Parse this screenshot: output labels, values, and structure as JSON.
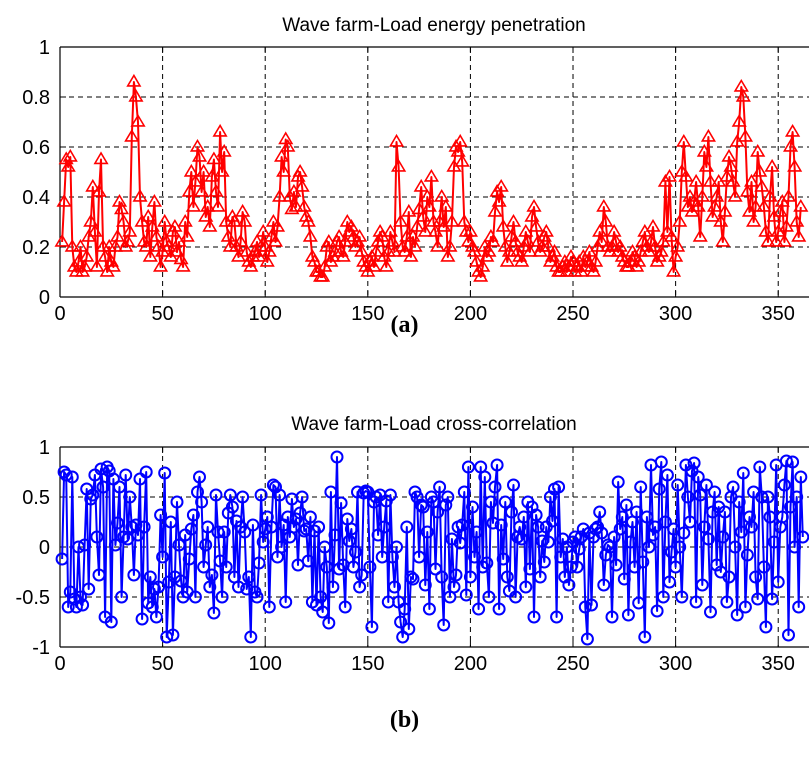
{
  "captions": {
    "a": "(a)",
    "b": "(b)"
  },
  "chart_data": [
    {
      "type": "line",
      "title": "Wave farm-Load energy penetration",
      "xlabel": "",
      "ylabel": "",
      "xlim": [
        0,
        365
      ],
      "ylim": [
        0,
        1
      ],
      "xticks": [
        0,
        50,
        100,
        150,
        200,
        250,
        300,
        350
      ],
      "yticks": [
        0,
        0.2,
        0.4,
        0.6,
        0.8,
        1
      ],
      "ytick_labels": [
        "0",
        "0.2",
        "0.4",
        "0.6",
        "0.8",
        "1"
      ],
      "grid": true,
      "legend": "none",
      "marker": "triangle",
      "color": "#ff0000",
      "series": [
        {
          "x_start": 1,
          "x_step": 1,
          "values": [
            0.22,
            0.38,
            0.55,
            0.52,
            0.56,
            0.2,
            0.12,
            0.1,
            0.14,
            0.2,
            0.1,
            0.12,
            0.16,
            0.24,
            0.3,
            0.44,
            0.26,
            0.12,
            0.42,
            0.55,
            0.2,
            0.16,
            0.1,
            0.2,
            0.14,
            0.12,
            0.2,
            0.24,
            0.38,
            0.35,
            0.3,
            0.2,
            0.22,
            0.26,
            0.64,
            0.86,
            0.8,
            0.7,
            0.4,
            0.3,
            0.22,
            0.2,
            0.32,
            0.16,
            0.28,
            0.38,
            0.24,
            0.2,
            0.12,
            0.18,
            0.3,
            0.22,
            0.2,
            0.16,
            0.26,
            0.28,
            0.18,
            0.22,
            0.15,
            0.12,
            0.3,
            0.24,
            0.42,
            0.5,
            0.36,
            0.46,
            0.6,
            0.56,
            0.42,
            0.5,
            0.32,
            0.36,
            0.28,
            0.48,
            0.55,
            0.42,
            0.36,
            0.66,
            0.5,
            0.58,
            0.3,
            0.24,
            0.2,
            0.32,
            0.3,
            0.2,
            0.16,
            0.22,
            0.34,
            0.3,
            0.18,
            0.14,
            0.12,
            0.16,
            0.18,
            0.22,
            0.16,
            0.2,
            0.26,
            0.2,
            0.14,
            0.18,
            0.24,
            0.3,
            0.22,
            0.28,
            0.4,
            0.56,
            0.5,
            0.63,
            0.6,
            0.4,
            0.35,
            0.42,
            0.36,
            0.48,
            0.5,
            0.44,
            0.36,
            0.32,
            0.3,
            0.24,
            0.16,
            0.14,
            0.1,
            0.1,
            0.08,
            0.08,
            0.12,
            0.2,
            0.22,
            0.14,
            0.16,
            0.18,
            0.22,
            0.24,
            0.18,
            0.16,
            0.22,
            0.3,
            0.26,
            0.28,
            0.24,
            0.2,
            0.22,
            0.24,
            0.18,
            0.14,
            0.12,
            0.1,
            0.14,
            0.16,
            0.12,
            0.18,
            0.22,
            0.26,
            0.24,
            0.16,
            0.12,
            0.18,
            0.26,
            0.22,
            0.18,
            0.62,
            0.52,
            0.3,
            0.2,
            0.18,
            0.24,
            0.34,
            0.16,
            0.24,
            0.2,
            0.28,
            0.35,
            0.44,
            0.32,
            0.26,
            0.4,
            0.36,
            0.48,
            0.3,
            0.26,
            0.2,
            0.3,
            0.4,
            0.28,
            0.36,
            0.16,
            0.2,
            0.3,
            0.52,
            0.6,
            0.58,
            0.62,
            0.54,
            0.3,
            0.26,
            0.22,
            0.26,
            0.2,
            0.18,
            0.14,
            0.1,
            0.08,
            0.12,
            0.2,
            0.16,
            0.18,
            0.24,
            0.22,
            0.34,
            0.42,
            0.38,
            0.44,
            0.28,
            0.2,
            0.14,
            0.18,
            0.24,
            0.3,
            0.22,
            0.18,
            0.16,
            0.14,
            0.2,
            0.26,
            0.22,
            0.18,
            0.32,
            0.36,
            0.28,
            0.22,
            0.18,
            0.2,
            0.24,
            0.26,
            0.2,
            0.14,
            0.16,
            0.18,
            0.12,
            0.1,
            0.1,
            0.12,
            0.14,
            0.1,
            0.12,
            0.16,
            0.14,
            0.1,
            0.12,
            0.14,
            0.1,
            0.16,
            0.12,
            0.14,
            0.18,
            0.12,
            0.1,
            0.14,
            0.2,
            0.26,
            0.22,
            0.36,
            0.3,
            0.2,
            0.18,
            0.2,
            0.26,
            0.22,
            0.18,
            0.2,
            0.16,
            0.14,
            0.12,
            0.12,
            0.14,
            0.18,
            0.16,
            0.12,
            0.14,
            0.18,
            0.22,
            0.26,
            0.2,
            0.18,
            0.22,
            0.28,
            0.2,
            0.14,
            0.16,
            0.18,
            0.22,
            0.46,
            0.26,
            0.48,
            0.24,
            0.1,
            0.16,
            0.2,
            0.3,
            0.5,
            0.62,
            0.48,
            0.36,
            0.4,
            0.34,
            0.38,
            0.46,
            0.36,
            0.24,
            0.4,
            0.58,
            0.52,
            0.64,
            0.46,
            0.32,
            0.36,
            0.4,
            0.46,
            0.3,
            0.22,
            0.34,
            0.48,
            0.56,
            0.52,
            0.46,
            0.4,
            0.62,
            0.7,
            0.84,
            0.8,
            0.64,
            0.42,
            0.34,
            0.46,
            0.3,
            0.36,
            0.58,
            0.5,
            0.44,
            0.36,
            0.26,
            0.22,
            0.4,
            0.52,
            0.32,
            0.22,
            0.26,
            0.34,
            0.38,
            0.22,
            0.28,
            0.4,
            0.6,
            0.66,
            0.52,
            0.3,
            0.24,
            0.36
          ]
        }
      ]
    },
    {
      "type": "line",
      "title": "Wave farm-Load cross-correlation",
      "xlabel": "",
      "ylabel": "",
      "xlim": [
        0,
        365
      ],
      "ylim": [
        -1,
        1
      ],
      "xticks": [
        0,
        50,
        100,
        150,
        200,
        250,
        300,
        350
      ],
      "yticks": [
        -1,
        -0.5,
        0,
        0.5,
        1
      ],
      "ytick_labels": [
        "-1",
        "-0.5",
        "0",
        "0.5",
        "1"
      ],
      "grid": true,
      "legend": "none",
      "marker": "circle",
      "color": "#0000ff",
      "series": [
        {
          "x_start": 1,
          "x_step": 1,
          "values": [
            -0.12,
            0.75,
            0.72,
            -0.6,
            -0.45,
            0.7,
            -0.52,
            -0.6,
            0.0,
            -0.5,
            -0.58,
            0.02,
            0.58,
            -0.42,
            0.48,
            0.52,
            0.72,
            0.1,
            -0.28,
            0.78,
            0.6,
            -0.7,
            0.8,
            0.76,
            -0.75,
            0.68,
            0.02,
            0.24,
            0.6,
            -0.5,
            0.1,
            0.72,
            0.08,
            0.5,
            0.2,
            -0.28,
            0.22,
            0.12,
            0.68,
            -0.72,
            0.2,
            0.75,
            -0.56,
            -0.3,
            -0.6,
            -0.42,
            -0.7,
            -0.4,
            0.32,
            -0.1,
            0.74,
            -0.9,
            -0.35,
            0.25,
            -0.88,
            -0.3,
            0.45,
            0.02,
            -0.34,
            -0.5,
            0.12,
            -0.45,
            -0.12,
            0.18,
            0.32,
            -0.5,
            0.55,
            0.7,
            0.45,
            -0.2,
            0.02,
            0.2,
            -0.4,
            -0.28,
            -0.66,
            0.52,
            0.15,
            -0.14,
            -0.5,
            0.15,
            -0.2,
            0.34,
            0.52,
            0.4,
            -0.3,
            0.26,
            -0.4,
            0.2,
            0.5,
            0.15,
            -0.42,
            -0.3,
            -0.9,
            0.22,
            -0.45,
            -0.5,
            -0.16,
            0.52,
            0.05,
            0.18,
            0.3,
            -0.6,
            0.2,
            0.62,
            0.6,
            -0.1,
            0.52,
            0.0,
            0.22,
            -0.55,
            0.3,
            0.1,
            0.48,
            0.2,
            0.28,
            -0.18,
            0.34,
            0.5,
            0.16,
            0.18,
            -0.14,
            0.3,
            -0.55,
            0.16,
            -0.58,
            0.2,
            -0.5,
            -0.65,
            0.0,
            -0.2,
            -0.76,
            0.55,
            -0.4,
            0.12,
            0.9,
            -0.22,
            0.44,
            -0.18,
            -0.6,
            0.28,
            0.06,
            0.18,
            -0.2,
            -0.05,
            0.55,
            -0.4,
            -0.28,
            0.54,
            0.56,
            0.55,
            -0.2,
            -0.8,
            0.45,
            0.5,
            0.12,
            0.52,
            -0.1,
            0.2,
            0.46,
            -0.55,
            0.52,
            -0.1,
            -0.4,
            0.0,
            -0.55,
            -0.75,
            -0.9,
            -0.62,
            0.2,
            -0.82,
            -0.3,
            -0.32,
            0.55,
            0.5,
            -0.1,
            0.42,
            0.4,
            -0.38,
            0.15,
            -0.62,
            0.5,
            0.45,
            -0.22,
            0.35,
            0.6,
            -0.3,
            -0.78,
            0.42,
            0.5,
            -0.5,
            0.08,
            -0.4,
            -0.28,
            0.2,
            0.04,
            0.22,
            0.55,
            -0.48,
            0.8,
            -0.3,
            0.4,
            -0.1,
            0.15,
            -0.62,
            0.8,
            -0.2,
            0.7,
            -0.16,
            -0.5,
            0.45,
            0.24,
            0.6,
            0.82,
            -0.62,
            0.22,
            -0.12,
            0.45,
            -0.3,
            -0.44,
            0.35,
            0.62,
            -0.5,
            0.1,
            0.2,
            0.08,
            0.3,
            -0.4,
            0.45,
            -0.22,
            0.4,
            -0.7,
            0.32,
            0.2,
            -0.3,
            0.06,
            -0.15,
            0.2,
            0.05,
            0.5,
            0.26,
            0.58,
            -0.7,
            0.6,
            -0.1,
            0.08,
            -0.3,
            0.0,
            -0.38,
            -0.2,
            0.05,
            0.1,
            -0.2,
            -0.02,
            0.1,
            0.18,
            -0.6,
            -0.92,
            0.14,
            -0.58,
            0.1,
            0.18,
            0.2,
            0.35,
            0.14,
            -0.38,
            -0.08,
            0.02,
            0.0,
            -0.7,
            0.1,
            -0.18,
            0.65,
            0.18,
            0.3,
            -0.32,
            0.42,
            -0.68,
            0.05,
            0.25,
            -0.2,
            0.35,
            -0.56,
            0.6,
            -0.15,
            -0.9,
            0.3,
            0.0,
            0.82,
            0.12,
            0.2,
            -0.64,
            0.58,
            0.85,
            -0.5,
            0.25,
            0.72,
            -0.35,
            -0.05,
            0.18,
            -0.2,
            0.62,
            0.0,
            -0.5,
            0.14,
            0.82,
            0.5,
            0.25,
            0.76,
            0.84,
            -0.55,
            0.7,
            0.52,
            -0.38,
            0.2,
            0.62,
            0.08,
            -0.65,
            0.35,
            0.55,
            -0.18,
            0.4,
            -0.25,
            0.1,
            0.35,
            -0.55,
            -0.3,
            0.5,
            0.6,
            0.0,
            -0.68,
            0.45,
            0.15,
            0.74,
            -0.6,
            -0.08,
            0.3,
            0.2,
            0.55,
            -0.3,
            -0.52,
            0.8,
            0.5,
            -0.2,
            -0.8,
            0.5,
            0.3,
            -0.52,
            0.05,
            0.82,
            -0.35,
            0.2,
            0.3,
            0.62,
            0.86,
            -0.88,
            0.4,
            0.85,
            0.0,
            0.5,
            -0.6,
            0.7,
            0.1
          ]
        }
      ]
    }
  ]
}
